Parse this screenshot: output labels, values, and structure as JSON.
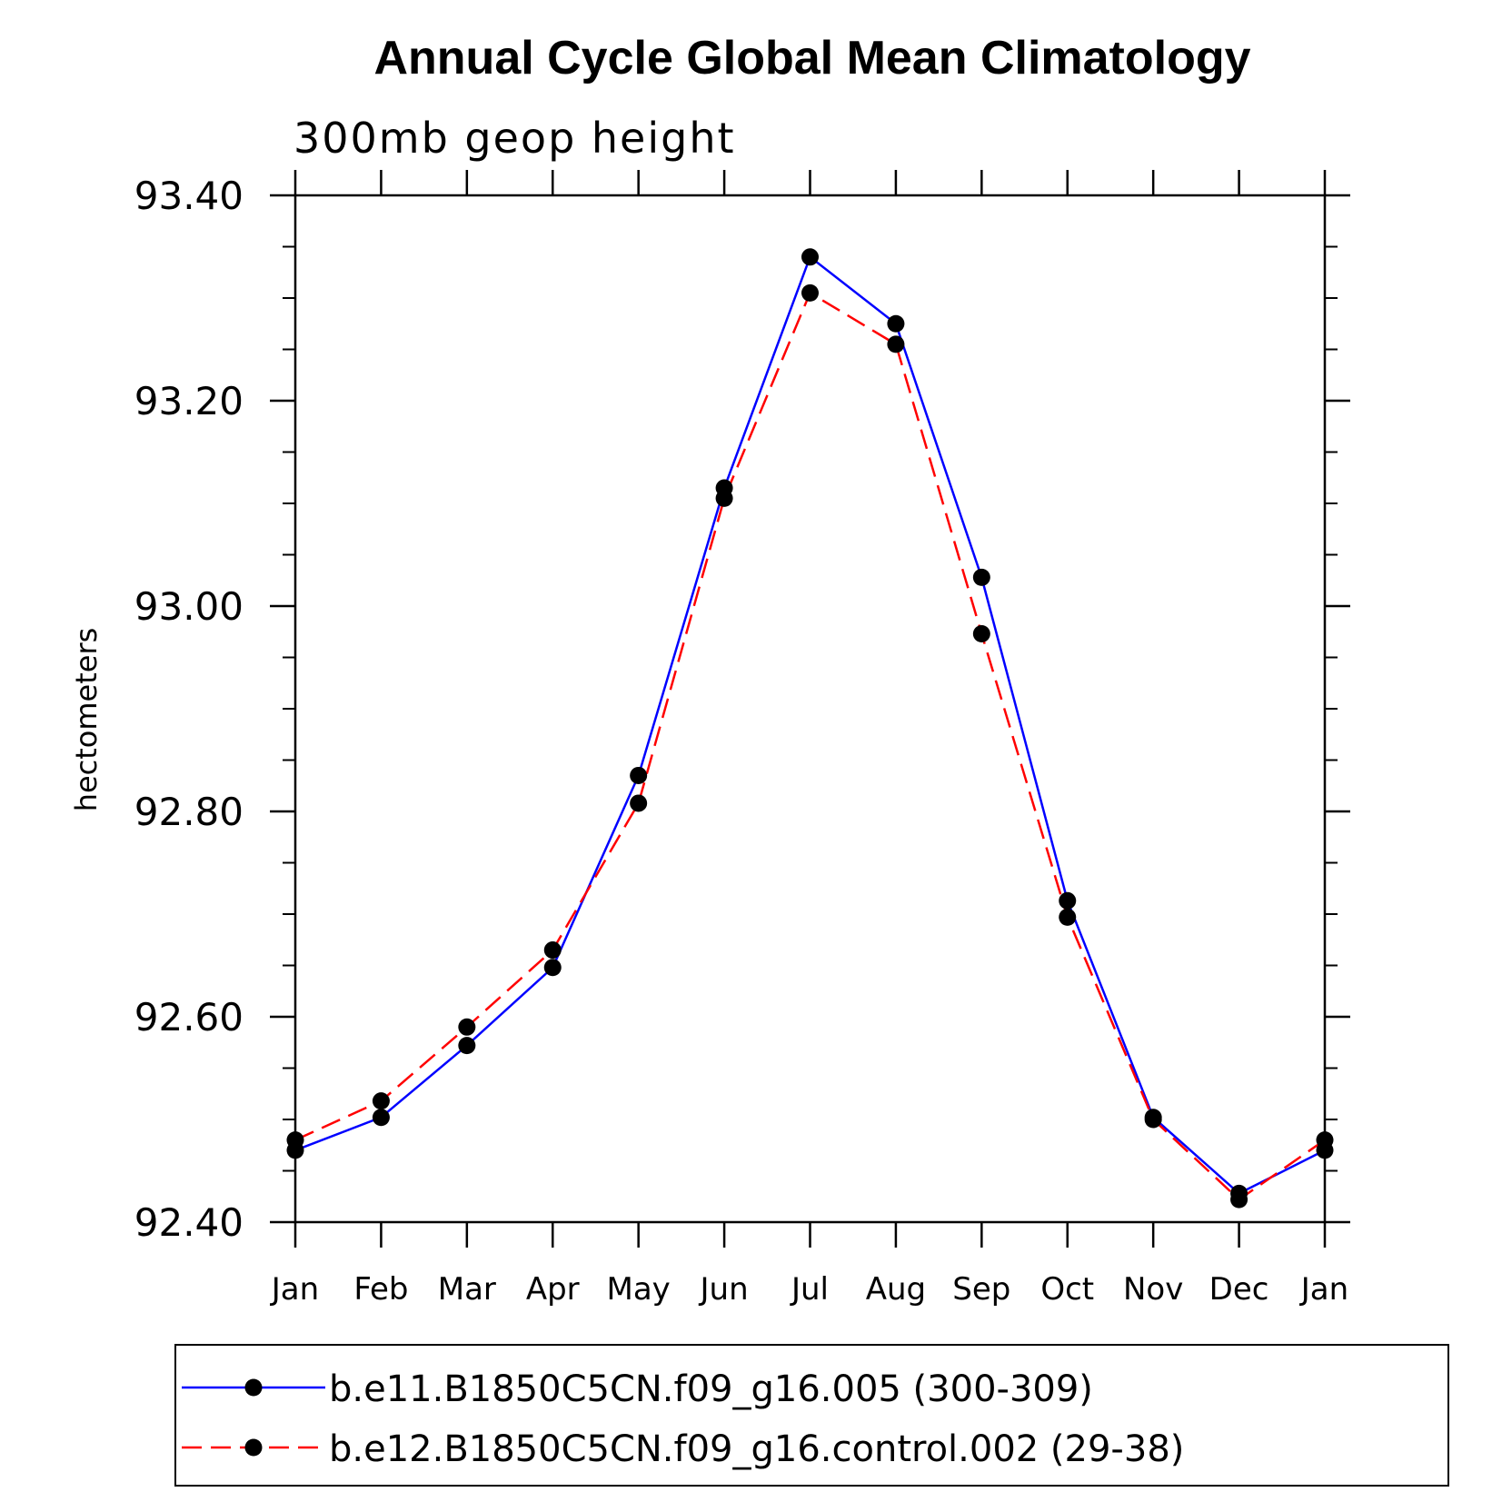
{
  "chart_data": {
    "type": "line",
    "title": "Annual Cycle Global Mean Climatology",
    "subtitle": "300mb geop height",
    "ylabel": "hectometers",
    "xlabel": "",
    "categories": [
      "Jan",
      "Feb",
      "Mar",
      "Apr",
      "May",
      "Jun",
      "Jul",
      "Aug",
      "Sep",
      "Oct",
      "Nov",
      "Dec",
      "Jan"
    ],
    "ylim": [
      92.4,
      93.4
    ],
    "yticks": [
      "92.40",
      "92.60",
      "92.80",
      "93.00",
      "93.20",
      "93.40"
    ],
    "grid": false,
    "legend_position": "bottom",
    "series": [
      {
        "name": "b.e11.B1850C5CN.f09_g16.005 (300-309)",
        "color": "#0000ff",
        "dash": "solid",
        "marker": "filled-circle",
        "values": [
          92.47,
          92.502,
          92.572,
          92.648,
          92.835,
          93.115,
          93.34,
          93.275,
          93.028,
          92.713,
          92.502,
          92.428,
          92.47
        ]
      },
      {
        "name": "b.e12.B1850C5CN.f09_g16.control.002 (29-38)",
        "color": "#ff0000",
        "dash": "dashed",
        "marker": "filled-circle",
        "values": [
          92.48,
          92.518,
          92.59,
          92.665,
          92.808,
          93.105,
          93.305,
          93.255,
          92.973,
          92.697,
          92.5,
          92.422,
          92.48
        ]
      }
    ]
  }
}
